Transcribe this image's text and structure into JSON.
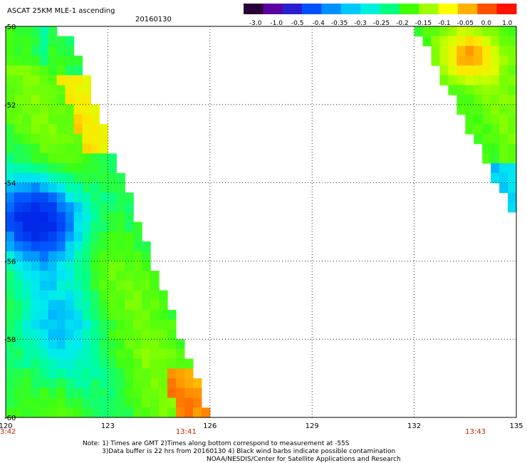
{
  "header": {
    "title": "ASCAT 25KM MLE-1 ascending",
    "date": "20160130"
  },
  "colorbar": {
    "labels": [
      "-3.0",
      "-1.0",
      "-0.5",
      "-0.4",
      "-0.35",
      "-0.3",
      "-0.25",
      "-0.2",
      "-0.15",
      "-0.1",
      "-0.05",
      "0.0",
      "1.0"
    ],
    "colors": [
      "#2a0038",
      "#5a00a0",
      "#2a1fd0",
      "#0050ff",
      "#0090ff",
      "#00c8ff",
      "#00f0e0",
      "#00ff80",
      "#40ff00",
      "#a0ff00",
      "#ffff00",
      "#ffb000",
      "#ff5000",
      "#ff1000"
    ]
  },
  "chart_data": {
    "type": "heatmap",
    "title": "ASCAT 25KM MLE-1 ascending",
    "date": "20160130",
    "xticks": [
      "120",
      "123",
      "126",
      "129",
      "132",
      "135"
    ],
    "yticks": [
      "-50",
      "-52",
      "-54",
      "-56",
      "-58",
      "-60"
    ],
    "xlim": [
      120,
      135
    ],
    "ylim": [
      -60,
      -50
    ],
    "grid": true,
    "colorbar_position": "top-right",
    "time_labels": [
      {
        "text": "13:42",
        "lon": 120
      },
      {
        "text": "13:41",
        "lon": 125.3
      },
      {
        "text": "13:43",
        "lon": 133.8
      }
    ],
    "swaths": [
      {
        "name": "west",
        "region": "lon 120 to diagonal edge ~122-126, lat -50 to -60",
        "features": [
          {
            "value_range": "-0.35 to -0.4",
            "approx_lat": [
              -53.9,
              -56.3
            ],
            "approx_lon": [
              120,
              123.8
            ]
          },
          {
            "value_range": "-0.3 to -0.25",
            "approx_lat": [
              -56,
              -59
            ],
            "approx_lon": [
              120,
              122.8
            ]
          },
          {
            "value_range": "-0.05 to 0.0",
            "approx_lat": [
              -51.5,
              -52.9
            ],
            "approx_lon": [
              122,
              122.6
            ]
          },
          {
            "value_range": "0.0",
            "approx_lat": [
              -59,
              -59.8
            ],
            "approx_lon": [
              125,
              125.4
            ]
          }
        ]
      },
      {
        "name": "east",
        "region": "lon ~132 to 135, lat -50 to -55",
        "features": [
          {
            "value_range": "-0.05 to 0.0",
            "approx_lat": [
              -50.6,
              -51.2
            ],
            "approx_lon": [
              133.2,
              134.0
            ]
          }
        ]
      }
    ]
  },
  "footer": {
    "note1": "Note: 1) Times are GMT 2)Times along bottom correspond to measurement at -55S",
    "note2": "3)Data buffer is 22 hrs from 20160130 4) Black wind barbs indicate possible contamination",
    "credit": "NOAA/NESDIS/Center for Satellite Applications and Research"
  }
}
